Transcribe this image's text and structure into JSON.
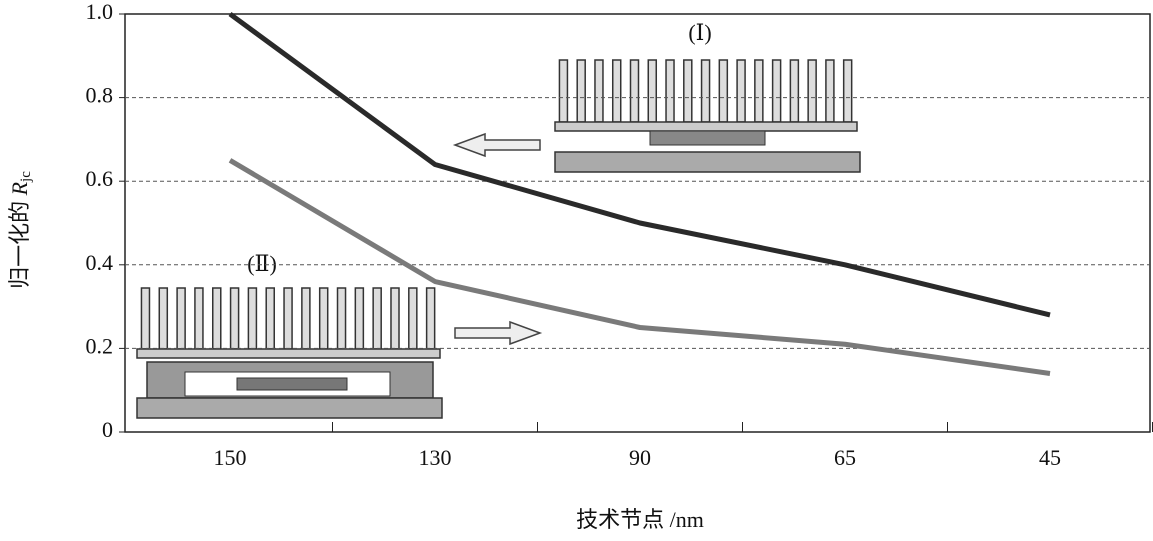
{
  "chart_data": {
    "type": "line",
    "x_label": "技术节点 /nm",
    "y_label": "归一化的",
    "y_label_symbol": "R",
    "y_label_sub": "jc",
    "categories": [
      "150",
      "130",
      "90",
      "65",
      "45"
    ],
    "series": [
      {
        "name": "(Ⅰ)",
        "color": "#2a2a2a",
        "values": [
          1.0,
          0.64,
          0.5,
          0.4,
          0.28
        ]
      },
      {
        "name": "(Ⅱ)",
        "color": "#7a7a7a",
        "values": [
          0.65,
          0.36,
          0.25,
          0.21,
          0.14
        ]
      }
    ],
    "ylim": [
      0,
      1
    ],
    "yticks": [
      0,
      0.2,
      0.4,
      0.6,
      0.8,
      {
        "value": 1,
        "label": "1.0"
      }
    ],
    "grid": true
  }
}
